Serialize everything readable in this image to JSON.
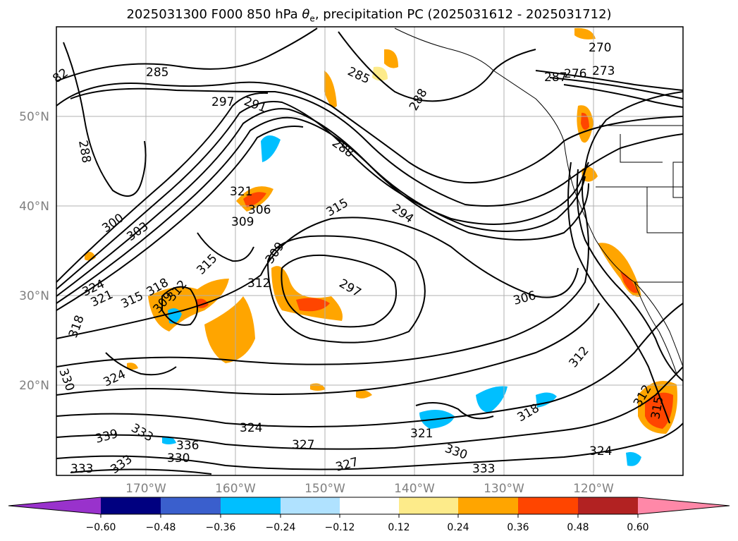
{
  "title": {
    "prefix": "2025031300 F000 850 hPa ",
    "theta": "θ",
    "theta_sub": "e",
    "suffix": ", precipitation PC (2025031612 - 2025031712)"
  },
  "map": {
    "lat_labels": [
      "50°N",
      "40°N",
      "30°N",
      "20°N"
    ],
    "lon_labels": [
      "170°W",
      "160°W",
      "150°W",
      "140°W",
      "130°W",
      "120°W"
    ],
    "contour_labels": [
      "82",
      "285",
      "297",
      "291",
      "288",
      "285",
      "288",
      "270",
      "287",
      "276",
      "273",
      "288",
      "321",
      "306",
      "309",
      "300",
      "303",
      "315",
      "294",
      "315",
      "309",
      "312",
      "297",
      "306",
      "324",
      "321",
      "315",
      "318",
      "309",
      "312",
      "318",
      "324",
      "330",
      "333",
      "336",
      "339",
      "330",
      "333",
      "324",
      "327",
      "321",
      "333",
      "330",
      "327",
      "333",
      "324",
      "318",
      "312",
      "312",
      "315"
    ]
  },
  "colorbar": {
    "tick_labels": [
      "−0.60",
      "−0.48",
      "−0.36",
      "−0.24",
      "−0.12",
      "0.12",
      "0.24",
      "0.36",
      "0.48",
      "0.60"
    ],
    "colors": {
      "under": "#9932cc",
      "bins": [
        "#000080",
        "#3a5fcd",
        "#00bfff",
        "#b0e2ff",
        "#ffffff",
        "#fdeb8a",
        "#ffa500",
        "#ff4500",
        "#b22222"
      ],
      "over": "#ff88a8"
    }
  }
}
